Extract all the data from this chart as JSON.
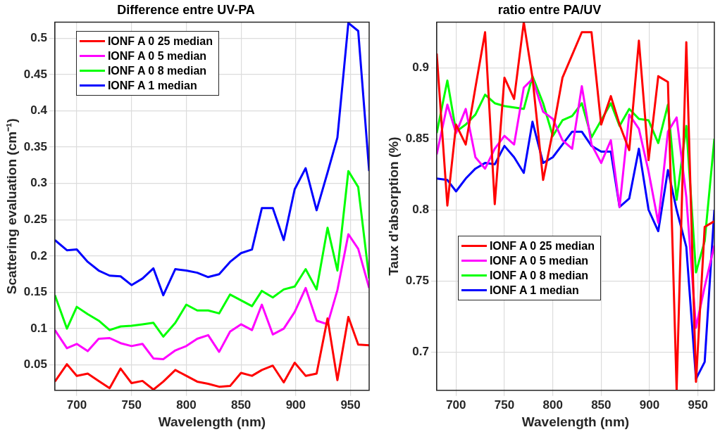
{
  "chart_data": [
    {
      "type": "line",
      "title": "Difference entre UV-PA",
      "xlabel": "Wavelength (nm)",
      "ylabel": "Scattering evaluation (cm⁻¹)",
      "x": [
        680,
        691,
        700,
        710,
        720,
        730,
        740,
        750,
        760,
        770,
        779,
        790,
        800,
        810,
        820,
        830,
        840,
        850,
        860,
        869,
        879,
        889,
        899,
        909,
        919,
        929,
        938,
        948,
        957,
        967
      ],
      "series": [
        {
          "name": "IONF A 0 25 median",
          "color": "#ff0000",
          "values": [
            0.027,
            0.051,
            0.035,
            0.038,
            0.028,
            0.018,
            0.045,
            0.025,
            0.028,
            0.016,
            0.027,
            0.043,
            0.035,
            0.027,
            0.024,
            0.02,
            0.021,
            0.039,
            0.035,
            0.043,
            0.049,
            0.026,
            0.053,
            0.035,
            0.038,
            0.114,
            0.029,
            0.116,
            0.078,
            0.077
          ]
        },
        {
          "name": "IONF A 0 5 median",
          "color": "#ff00ff",
          "values": [
            0.098,
            0.073,
            0.079,
            0.069,
            0.086,
            0.087,
            0.08,
            0.076,
            0.079,
            0.059,
            0.058,
            0.07,
            0.076,
            0.086,
            0.091,
            0.068,
            0.096,
            0.106,
            0.098,
            0.133,
            0.092,
            0.1,
            0.123,
            0.156,
            0.111,
            0.106,
            0.153,
            0.23,
            0.21,
            0.156
          ]
        },
        {
          "name": "IONF A 0 8 median",
          "color": "#00ff00",
          "values": [
            0.146,
            0.1,
            0.13,
            0.12,
            0.111,
            0.098,
            0.103,
            0.104,
            0.106,
            0.108,
            0.089,
            0.108,
            0.133,
            0.125,
            0.125,
            0.121,
            0.147,
            0.139,
            0.131,
            0.152,
            0.143,
            0.154,
            0.158,
            0.182,
            0.154,
            0.239,
            0.18,
            0.317,
            0.295,
            0.169
          ]
        },
        {
          "name": "IONF A 1 median",
          "color": "#0000ff",
          "values": [
            0.222,
            0.208,
            0.209,
            0.192,
            0.18,
            0.173,
            0.172,
            0.16,
            0.169,
            0.183,
            0.146,
            0.182,
            0.18,
            0.177,
            0.171,
            0.175,
            0.192,
            0.204,
            0.209,
            0.266,
            0.266,
            0.222,
            0.292,
            0.321,
            0.263,
            0.315,
            0.363,
            0.521,
            0.51,
            0.317
          ]
        }
      ],
      "xlim": [
        680,
        967
      ],
      "xticks": [
        700,
        750,
        800,
        850,
        900,
        950
      ],
      "ylim": [
        0.015,
        0.522
      ],
      "yticks": [
        0.05,
        0.1,
        0.15,
        0.2,
        0.25,
        0.3,
        0.35,
        0.4,
        0.45,
        0.5
      ],
      "grid": true,
      "legend": "top left"
    },
    {
      "type": "line",
      "title": "ratio entre PA/UV",
      "xlabel": "Wavelength (nm)",
      "ylabel": "Taux d'absorption (%)",
      "x": [
        680,
        691,
        700,
        710,
        720,
        730,
        740,
        750,
        760,
        770,
        779,
        790,
        800,
        810,
        820,
        830,
        840,
        850,
        860,
        869,
        879,
        889,
        899,
        909,
        919,
        928,
        938,
        948,
        957,
        967
      ],
      "series": [
        {
          "name": "IONF A 0 25 median",
          "color": "#ff0000",
          "values": [
            0.91,
            0.803,
            0.86,
            0.846,
            0.886,
            0.925,
            0.804,
            0.893,
            0.878,
            0.932,
            0.893,
            0.821,
            0.855,
            0.893,
            0.909,
            0.925,
            0.925,
            0.86,
            0.88,
            0.86,
            0.842,
            0.919,
            0.835,
            0.894,
            0.89,
            0.673,
            0.918,
            0.679,
            0.788,
            0.792
          ]
        },
        {
          "name": "IONF A 0 5 median",
          "color": "#ff00ff",
          "values": [
            0.839,
            0.874,
            0.854,
            0.871,
            0.837,
            0.829,
            0.843,
            0.852,
            0.846,
            0.886,
            0.892,
            0.869,
            0.864,
            0.849,
            0.843,
            0.887,
            0.846,
            0.833,
            0.849,
            0.802,
            0.867,
            0.857,
            0.827,
            0.791,
            0.855,
            0.865,
            0.809,
            0.717,
            0.746,
            0.775
          ]
        },
        {
          "name": "IONF A 0 8 median",
          "color": "#00ff00",
          "values": [
            0.854,
            0.891,
            0.855,
            0.86,
            0.867,
            0.881,
            0.875,
            0.873,
            0.872,
            0.871,
            0.894,
            0.875,
            0.852,
            0.863,
            0.866,
            0.875,
            0.851,
            0.863,
            0.875,
            0.859,
            0.871,
            0.864,
            0.863,
            0.847,
            0.874,
            0.807,
            0.859,
            0.756,
            0.778,
            0.85
          ]
        },
        {
          "name": "IONF A 1 median",
          "color": "#0000ff",
          "values": [
            0.822,
            0.821,
            0.813,
            0.822,
            0.829,
            0.833,
            0.832,
            0.845,
            0.837,
            0.826,
            0.862,
            0.833,
            0.837,
            0.846,
            0.855,
            0.855,
            0.845,
            0.841,
            0.841,
            0.802,
            0.808,
            0.843,
            0.8,
            0.785,
            0.828,
            0.8,
            0.774,
            0.681,
            0.693,
            0.8
          ]
        }
      ],
      "xlim": [
        680,
        967
      ],
      "xticks": [
        700,
        750,
        800,
        850,
        900,
        950
      ],
      "ylim": [
        0.673,
        0.932
      ],
      "yticks": [
        0.7,
        0.75,
        0.8,
        0.85,
        0.9
      ],
      "grid": true,
      "legend": "bottom left"
    }
  ]
}
